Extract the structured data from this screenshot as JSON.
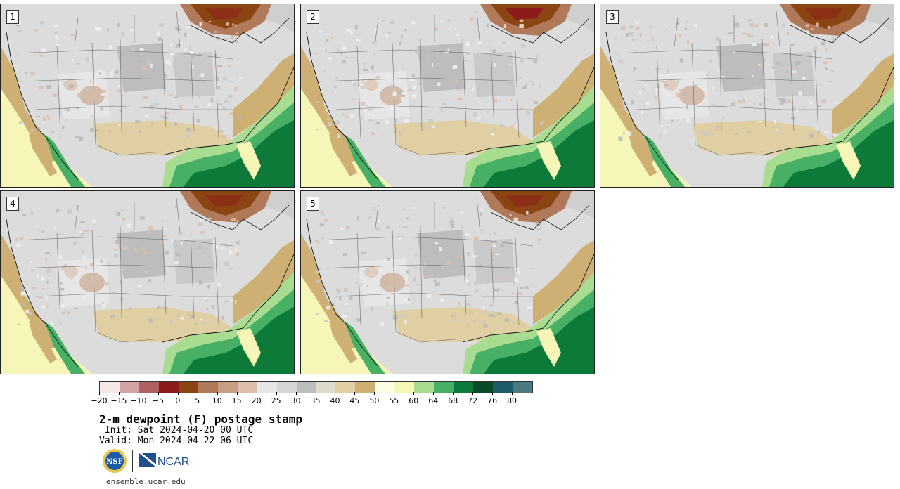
{
  "panels": [
    {
      "label": "1"
    },
    {
      "label": "2"
    },
    {
      "label": "3"
    },
    {
      "label": "4"
    },
    {
      "label": "5"
    }
  ],
  "colorbar": {
    "labels": [
      "−20",
      "−15",
      "−10",
      "−5",
      "0",
      "5",
      "10",
      "15",
      "20",
      "25",
      "30",
      "35",
      "40",
      "45",
      "50",
      "55",
      "60",
      "64",
      "68",
      "72",
      "76",
      "80"
    ],
    "colors": [
      "#f3e7e7",
      "#d4a3a3",
      "#b06060",
      "#8c1a1a",
      "#8b4513",
      "#b07a5a",
      "#c79e84",
      "#dcc0ac",
      "#e6e6e6",
      "#d6d6d6",
      "#bdbdbd",
      "#dedbcc",
      "#e0cfa3",
      "#cfb074",
      "#fdfde6",
      "#f6f6b8",
      "#a8dc90",
      "#48b064",
      "#0e7a3a",
      "#0b4a26",
      "#1e5a6a",
      "#4a7a80"
    ]
  },
  "title": "2-m dewpoint (F) postage stamp",
  "init": " Init: Sat 2024-04-20 00 UTC",
  "valid": "Valid: Mon 2024-04-22 06 UTC",
  "logos": {
    "nsf": "NSF",
    "ncar": "NCAR"
  },
  "website": "ensemble.ucar.edu",
  "colors": {
    "ocean_gulf": "#0e7a3a",
    "ocean_pacific": "#f6f6b8",
    "land": "#d6d6d6",
    "border": "#222222"
  }
}
